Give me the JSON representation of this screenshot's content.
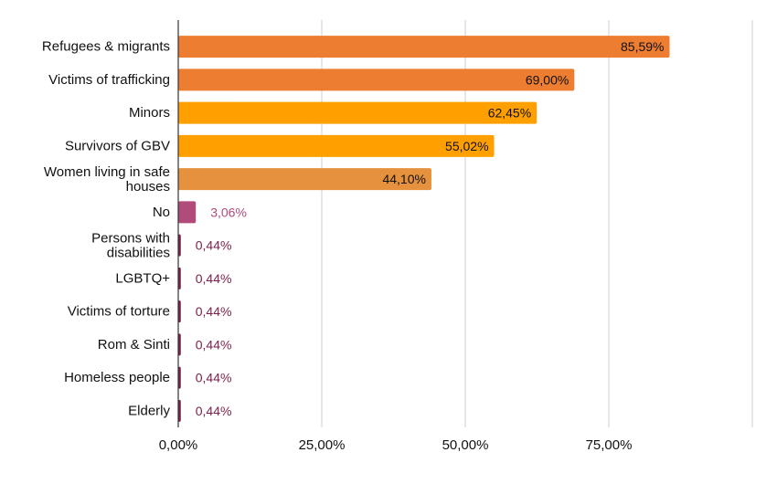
{
  "chart_data": {
    "type": "bar",
    "orientation": "horizontal",
    "title": "",
    "xlabel": "",
    "ylabel": "",
    "xlim": [
      0,
      100
    ],
    "x_ticks": [
      "0,00%",
      "25,00%",
      "50,00%",
      "75,00%"
    ],
    "grid": true,
    "categories": [
      "Refugees & migrants",
      "Victims of trafficking",
      "Minors",
      "Survivors of GBV",
      "Women living in safe houses",
      "No",
      "Persons with disabilities",
      "LGBTQ+",
      "Victims of torture",
      "Rom & Sinti",
      "Homeless people",
      "Elderly"
    ],
    "values": [
      85.59,
      69.0,
      62.45,
      55.02,
      44.1,
      3.06,
      0.44,
      0.44,
      0.44,
      0.44,
      0.44,
      0.44
    ],
    "value_labels": [
      "85,59%",
      "69,00%",
      "62,45%",
      "55,02%",
      "44,10%",
      "3,06%",
      "0,44%",
      "0,44%",
      "0,44%",
      "0,44%",
      "0,44%",
      "0,44%"
    ],
    "colors": [
      "#ED7D31",
      "#ED7D31",
      "#FFA000",
      "#FFA000",
      "#E6913E",
      "#B04B7A",
      "#7A1F4A",
      "#7A1F4A",
      "#7A1F4A",
      "#7A1F4A",
      "#7A1F4A",
      "#7A1F4A"
    ],
    "label_colors": [
      "#111111",
      "#111111",
      "#111111",
      "#111111",
      "#111111",
      "#B04B7A",
      "#7A1F4A",
      "#7A1F4A",
      "#7A1F4A",
      "#7A1F4A",
      "#7A1F4A",
      "#7A1F4A"
    ]
  }
}
